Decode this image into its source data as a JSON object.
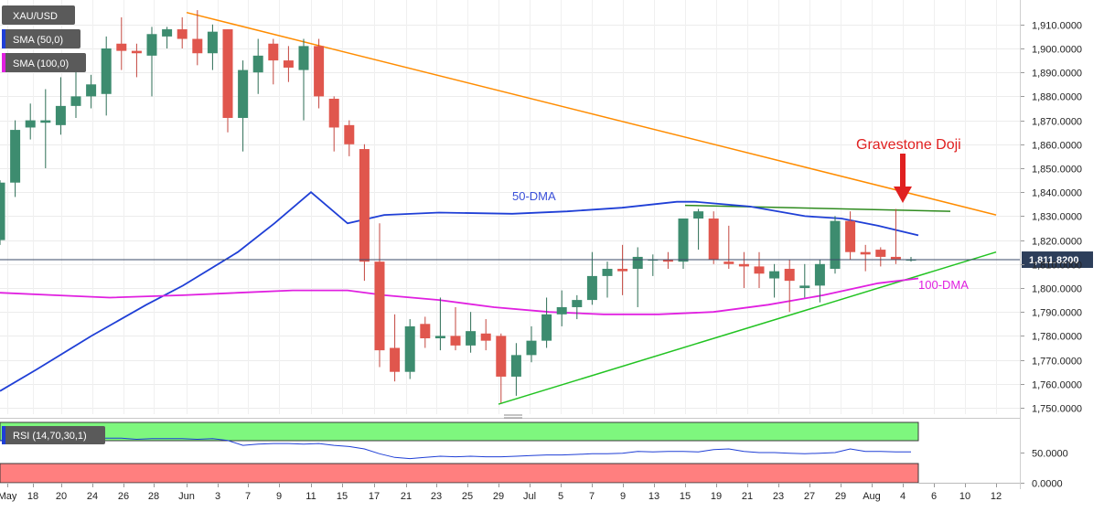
{
  "chart_data": [
    {
      "type": "candlestick",
      "title": "XAU/USD",
      "legend": [
        {
          "label": "XAU/USD"
        },
        {
          "label": "SMA (50,0)",
          "color": "#1f3fd6"
        },
        {
          "label": "SMA (100,0)",
          "color": "#e020e0"
        }
      ],
      "ylim": [
        1745,
        1918
      ],
      "y_ticks": [
        1750,
        1760,
        1770,
        1780,
        1790,
        1800,
        1810,
        1820,
        1830,
        1840,
        1850,
        1860,
        1870,
        1880,
        1890,
        1900,
        1910
      ],
      "y_tick_labels": [
        "1,750.0000",
        "1,760.0000",
        "1,770.0000",
        "1,780.0000",
        "1,790.0000",
        "1,800.0000",
        "1,810.0000",
        "1,820.0000",
        "1,830.0000",
        "1,840.0000",
        "1,850.0000",
        "1,860.0000",
        "1,870.0000",
        "1,880.0000",
        "1,890.0000",
        "1,900.0000",
        "1,910.0000"
      ],
      "last_price": 1811.82,
      "last_price_label": "1,811.8200",
      "x_labels": [
        "May",
        "18",
        "20",
        "24",
        "26",
        "28",
        "Jun",
        "3",
        "7",
        "9",
        "11",
        "15",
        "17",
        "21",
        "23",
        "25",
        "29",
        "Jul",
        "5",
        "7",
        "9",
        "13",
        "15",
        "19",
        "21",
        "23",
        "27",
        "29",
        "Aug",
        "4",
        "6",
        "10",
        "12"
      ],
      "candles": [
        {
          "o": 1820,
          "h": 1845,
          "l": 1818,
          "c": 1844
        },
        {
          "o": 1844,
          "h": 1870,
          "l": 1838,
          "c": 1866
        },
        {
          "o": 1867,
          "h": 1877,
          "l": 1862,
          "c": 1870
        },
        {
          "o": 1869,
          "h": 1883,
          "l": 1850,
          "c": 1870
        },
        {
          "o": 1868,
          "h": 1888,
          "l": 1864,
          "c": 1876
        },
        {
          "o": 1876,
          "h": 1891,
          "l": 1871,
          "c": 1880
        },
        {
          "o": 1880,
          "h": 1889,
          "l": 1875,
          "c": 1885
        },
        {
          "o": 1881,
          "h": 1905,
          "l": 1872,
          "c": 1900
        },
        {
          "o": 1902,
          "h": 1913,
          "l": 1891,
          "c": 1899
        },
        {
          "o": 1899,
          "h": 1902,
          "l": 1888,
          "c": 1898
        },
        {
          "o": 1897,
          "h": 1909,
          "l": 1880,
          "c": 1906
        },
        {
          "o": 1905,
          "h": 1909,
          "l": 1900,
          "c": 1908
        },
        {
          "o": 1908,
          "h": 1913,
          "l": 1900,
          "c": 1904
        },
        {
          "o": 1904,
          "h": 1916,
          "l": 1893,
          "c": 1898
        },
        {
          "o": 1898,
          "h": 1910,
          "l": 1891,
          "c": 1907
        },
        {
          "o": 1908,
          "h": 1908,
          "l": 1865,
          "c": 1871
        },
        {
          "o": 1871,
          "h": 1895,
          "l": 1857,
          "c": 1891
        },
        {
          "o": 1890,
          "h": 1904,
          "l": 1881,
          "c": 1897
        },
        {
          "o": 1902,
          "h": 1904,
          "l": 1885,
          "c": 1895
        },
        {
          "o": 1895,
          "h": 1901,
          "l": 1886,
          "c": 1892
        },
        {
          "o": 1891,
          "h": 1904,
          "l": 1870,
          "c": 1901
        },
        {
          "o": 1901,
          "h": 1904,
          "l": 1875,
          "c": 1880
        },
        {
          "o": 1879,
          "h": 1880,
          "l": 1857,
          "c": 1867
        },
        {
          "o": 1868,
          "h": 1870,
          "l": 1855,
          "c": 1860
        },
        {
          "o": 1858,
          "h": 1860,
          "l": 1803,
          "c": 1811
        },
        {
          "o": 1811,
          "h": 1827,
          "l": 1767,
          "c": 1774
        },
        {
          "o": 1775,
          "h": 1789,
          "l": 1761,
          "c": 1765
        },
        {
          "o": 1765,
          "h": 1787,
          "l": 1762,
          "c": 1784
        },
        {
          "o": 1785,
          "h": 1788,
          "l": 1775,
          "c": 1779
        },
        {
          "o": 1779,
          "h": 1796,
          "l": 1774,
          "c": 1780
        },
        {
          "o": 1780,
          "h": 1792,
          "l": 1774,
          "c": 1776
        },
        {
          "o": 1776,
          "h": 1790,
          "l": 1773,
          "c": 1782
        },
        {
          "o": 1781,
          "h": 1787,
          "l": 1774,
          "c": 1778
        },
        {
          "o": 1780,
          "h": 1781,
          "l": 1752,
          "c": 1763
        },
        {
          "o": 1763,
          "h": 1777,
          "l": 1755,
          "c": 1772
        },
        {
          "o": 1772,
          "h": 1784,
          "l": 1769,
          "c": 1778
        },
        {
          "o": 1778,
          "h": 1796,
          "l": 1775,
          "c": 1789
        },
        {
          "o": 1789,
          "h": 1799,
          "l": 1784,
          "c": 1792
        },
        {
          "o": 1792,
          "h": 1797,
          "l": 1787,
          "c": 1795
        },
        {
          "o": 1795,
          "h": 1815,
          "l": 1793,
          "c": 1805
        },
        {
          "o": 1805,
          "h": 1811,
          "l": 1796,
          "c": 1808
        },
        {
          "o": 1808,
          "h": 1818,
          "l": 1797,
          "c": 1807
        },
        {
          "o": 1808,
          "h": 1817,
          "l": 1792,
          "c": 1813
        },
        {
          "o": 1812,
          "h": 1814,
          "l": 1805,
          "c": 1812
        },
        {
          "o": 1812,
          "h": 1815,
          "l": 1808,
          "c": 1811
        },
        {
          "o": 1811,
          "h": 1829,
          "l": 1808,
          "c": 1829
        },
        {
          "o": 1829,
          "h": 1833,
          "l": 1816,
          "c": 1832
        },
        {
          "o": 1829,
          "h": 1832,
          "l": 1810,
          "c": 1812
        },
        {
          "o": 1811,
          "h": 1826,
          "l": 1808,
          "c": 1810
        },
        {
          "o": 1810,
          "h": 1815,
          "l": 1800,
          "c": 1809
        },
        {
          "o": 1809,
          "h": 1815,
          "l": 1800,
          "c": 1806
        },
        {
          "o": 1804,
          "h": 1810,
          "l": 1796,
          "c": 1807
        },
        {
          "o": 1808,
          "h": 1812,
          "l": 1790,
          "c": 1803
        },
        {
          "o": 1800,
          "h": 1810,
          "l": 1796,
          "c": 1801
        },
        {
          "o": 1801,
          "h": 1812,
          "l": 1794,
          "c": 1810
        },
        {
          "o": 1808,
          "h": 1830,
          "l": 1806,
          "c": 1828
        },
        {
          "o": 1828,
          "h": 1832,
          "l": 1812,
          "c": 1815
        },
        {
          "o": 1815,
          "h": 1818,
          "l": 1807,
          "c": 1814
        },
        {
          "o": 1816,
          "h": 1817,
          "l": 1809,
          "c": 1813
        },
        {
          "o": 1813,
          "h": 1833,
          "l": 1810,
          "c": 1812
        },
        {
          "o": 1812,
          "h": 1813,
          "l": 1811,
          "c": 1812
        }
      ],
      "sma50_label": "50-DMA",
      "sma100_label": "100-DMA",
      "annotation": "Gravestone Doji",
      "rsi": {
        "label": "RSI (14,70,30,1)",
        "ylim": [
          0,
          100
        ],
        "y_ticks": [
          0,
          50
        ],
        "y_tick_labels": [
          "0.0000",
          "50.0000"
        ],
        "overbought": 70,
        "oversold": 30,
        "values": [
          70,
          71,
          72,
          71,
          72,
          73,
          73,
          74,
          74,
          72,
          73,
          73,
          73,
          72,
          73,
          70,
          62,
          64,
          65,
          65,
          64,
          65,
          62,
          60,
          56,
          48,
          42,
          40,
          42,
          44,
          43,
          44,
          43,
          43,
          44,
          45,
          46,
          46,
          47,
          48,
          48,
          49,
          52,
          51,
          52,
          52,
          51,
          55,
          56,
          52,
          50,
          50,
          49,
          48,
          49,
          50,
          56,
          52,
          52,
          51,
          51
        ]
      }
    }
  ]
}
